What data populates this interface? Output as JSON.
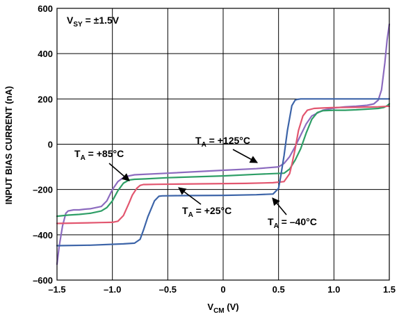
{
  "chart_data": {
    "type": "line",
    "xlabel": "V",
    "xlabel_sub": "CM",
    "xlabel_unit": " (V)",
    "ylabel": "INPUT BIAS CURRENT (nA)",
    "xlim": [
      -1.5,
      1.5
    ],
    "ylim": [
      -600,
      600
    ],
    "grid": true,
    "x_ticks": [
      -1.5,
      -1.0,
      -0.5,
      0,
      0.5,
      1.0,
      1.5
    ],
    "x_tick_labels": [
      "–1.5",
      "–1.0",
      "–0.5",
      "0",
      "0.5",
      "1.0",
      "1.5"
    ],
    "y_ticks": [
      -600,
      -400,
      -200,
      0,
      200,
      400,
      600
    ],
    "y_tick_labels": [
      "–600",
      "–400",
      "–200",
      "0",
      "200",
      "400",
      "600"
    ],
    "condition": {
      "main": "V",
      "sub": "SY",
      "rest": " = ±1.5V"
    },
    "series": [
      {
        "name": "+125°C",
        "label_main": "T",
        "label_sub": "A",
        "label_rest": " = +125°C",
        "color": "#8c6bbf",
        "x": [
          -1.5,
          -1.48,
          -1.45,
          -1.42,
          -1.4,
          -1.35,
          -1.3,
          -1.25,
          -1.2,
          -1.1,
          -1.05,
          -1.0,
          -0.95,
          -0.9,
          -0.85,
          -0.8,
          -0.5,
          0,
          0.3,
          0.5,
          0.55,
          0.6,
          0.65,
          0.7,
          0.75,
          0.8,
          0.9,
          1.0,
          1.1,
          1.2,
          1.3,
          1.36,
          1.4,
          1.43,
          1.46,
          1.48,
          1.5
        ],
        "y": [
          -530,
          -450,
          -360,
          -305,
          -295,
          -290,
          -290,
          -287,
          -285,
          -275,
          -250,
          -200,
          -165,
          -147,
          -140,
          -135,
          -128,
          -115,
          -108,
          -100,
          -85,
          -55,
          -10,
          40,
          90,
          125,
          150,
          160,
          165,
          168,
          172,
          178,
          195,
          240,
          360,
          460,
          530
        ]
      },
      {
        "name": "+85°C",
        "label_main": "T",
        "label_sub": "A",
        "label_rest": " = +85°C",
        "color": "#2e9e66",
        "x": [
          -1.5,
          -1.4,
          -1.3,
          -1.2,
          -1.1,
          -1.05,
          -1.0,
          -0.95,
          -0.9,
          -0.85,
          -0.8,
          -0.7,
          -0.5,
          0,
          0.3,
          0.55,
          0.6,
          0.65,
          0.7,
          0.75,
          0.8,
          0.85,
          0.9,
          1.0,
          1.1,
          1.2,
          1.3,
          1.4,
          1.45,
          1.48,
          1.5
        ],
        "y": [
          -318,
          -313,
          -310,
          -305,
          -295,
          -280,
          -250,
          -205,
          -172,
          -158,
          -155,
          -153,
          -148,
          -140,
          -133,
          -128,
          -110,
          -70,
          -20,
          50,
          110,
          140,
          148,
          150,
          150,
          152,
          155,
          158,
          162,
          170,
          178
        ]
      },
      {
        "name": "+25°C",
        "label_main": "T",
        "label_sub": "A",
        "label_rest": " = +25°C",
        "color": "#e2566f",
        "x": [
          -1.5,
          -1.3,
          -1.1,
          -1.0,
          -0.95,
          -0.9,
          -0.85,
          -0.82,
          -0.78,
          -0.75,
          -0.72,
          -0.7,
          -0.6,
          -0.2,
          0.2,
          0.45,
          0.55,
          0.6,
          0.62,
          0.65,
          0.68,
          0.72,
          0.76,
          0.82,
          0.9,
          1.0,
          1.2,
          1.4,
          1.5
        ],
        "y": [
          -350,
          -348,
          -346,
          -345,
          -340,
          -315,
          -260,
          -225,
          -195,
          -182,
          -178,
          -178,
          -177,
          -175,
          -173,
          -170,
          -165,
          -130,
          -90,
          -20,
          60,
          125,
          150,
          158,
          160,
          162,
          163,
          165,
          168
        ]
      },
      {
        "name": "–40°C",
        "label_main": "T",
        "label_sub": "A",
        "label_rest": " = –40°C",
        "color": "#3c64a8",
        "x": [
          -1.5,
          -1.2,
          -0.9,
          -0.8,
          -0.75,
          -0.72,
          -0.68,
          -0.62,
          -0.58,
          -0.55,
          -0.4,
          0,
          0.3,
          0.45,
          0.5,
          0.52,
          0.55,
          0.58,
          0.62,
          0.65,
          0.67,
          0.7,
          0.8,
          1.0,
          1.2,
          1.4,
          1.5
        ],
        "y": [
          -448,
          -446,
          -440,
          -437,
          -420,
          -380,
          -320,
          -250,
          -230,
          -228,
          -227,
          -226,
          -223,
          -220,
          -195,
          -140,
          -50,
          60,
          170,
          195,
          198,
          200,
          200,
          200,
          200,
          200,
          200
        ]
      }
    ]
  }
}
